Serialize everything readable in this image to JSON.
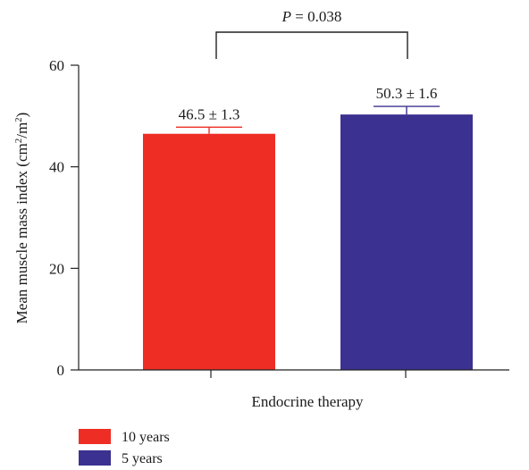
{
  "chart_data": {
    "type": "bar",
    "title": "",
    "xlabel": "Endocrine therapy",
    "ylabel": "Mean muscle mass index (cm²/m²)",
    "ylim": [
      0,
      60
    ],
    "yticks": [
      0,
      20,
      40,
      60
    ],
    "grid": false,
    "legend_position": "bottom-left",
    "series": [
      {
        "name": "10 years",
        "value": 46.5,
        "error": 1.3,
        "label": "46.5 ± 1.3",
        "color": "#ee2d24",
        "error_color": "#ee2d24"
      },
      {
        "name": "5 years",
        "value": 50.3,
        "error": 1.6,
        "label": "50.3 ± 1.6",
        "color": "#3b3190",
        "error_color": "#3b3190"
      }
    ],
    "annotation": {
      "label_italic": "P",
      "label_rest": " = 0.038"
    }
  }
}
